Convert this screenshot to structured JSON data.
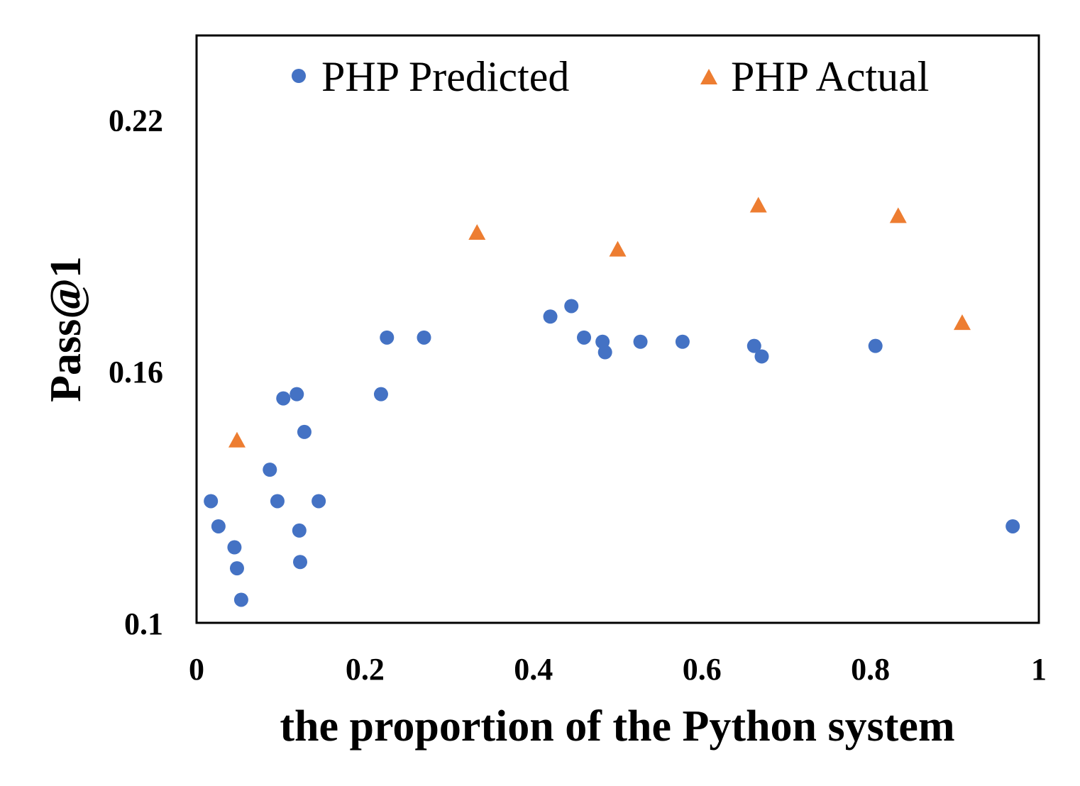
{
  "chart_data": {
    "type": "scatter",
    "xlabel": "the proportion of the Python system",
    "ylabel": "Pass@1",
    "xlim": [
      0,
      1
    ],
    "ylim": [
      0.1,
      0.24
    ],
    "xticks": [
      0,
      0.2,
      0.4,
      0.6,
      0.8,
      1
    ],
    "xtick_labels": [
      "0",
      "0.2",
      "0.4",
      "0.6",
      "0.8",
      "1"
    ],
    "yticks": [
      0.1,
      0.16,
      0.22
    ],
    "ytick_labels": [
      "0.1",
      "0.16",
      "0.22"
    ],
    "grid": false,
    "legend_position": "top",
    "series": [
      {
        "name": "PHP Predicted",
        "marker": "circle",
        "color": "#4472C4",
        "points": [
          [
            0.017,
            0.129
          ],
          [
            0.026,
            0.123
          ],
          [
            0.045,
            0.118
          ],
          [
            0.048,
            0.113
          ],
          [
            0.053,
            0.1055
          ],
          [
            0.087,
            0.1365
          ],
          [
            0.096,
            0.129
          ],
          [
            0.103,
            0.1535
          ],
          [
            0.119,
            0.1545
          ],
          [
            0.122,
            0.122
          ],
          [
            0.123,
            0.1145
          ],
          [
            0.128,
            0.1455
          ],
          [
            0.145,
            0.129
          ],
          [
            0.219,
            0.1545
          ],
          [
            0.226,
            0.168
          ],
          [
            0.27,
            0.168
          ],
          [
            0.42,
            0.173
          ],
          [
            0.445,
            0.1755
          ],
          [
            0.46,
            0.168
          ],
          [
            0.482,
            0.167
          ],
          [
            0.485,
            0.1645
          ],
          [
            0.527,
            0.167
          ],
          [
            0.577,
            0.167
          ],
          [
            0.662,
            0.166
          ],
          [
            0.671,
            0.1635
          ],
          [
            0.806,
            0.166
          ],
          [
            0.969,
            0.123
          ]
        ]
      },
      {
        "name": "PHP Actual",
        "marker": "triangle",
        "color": "#ED7D31",
        "points": [
          [
            0.048,
            0.1435
          ],
          [
            0.333,
            0.193
          ],
          [
            0.5,
            0.189
          ],
          [
            0.667,
            0.1995
          ],
          [
            0.833,
            0.197
          ],
          [
            0.909,
            0.1715
          ]
        ]
      }
    ]
  }
}
